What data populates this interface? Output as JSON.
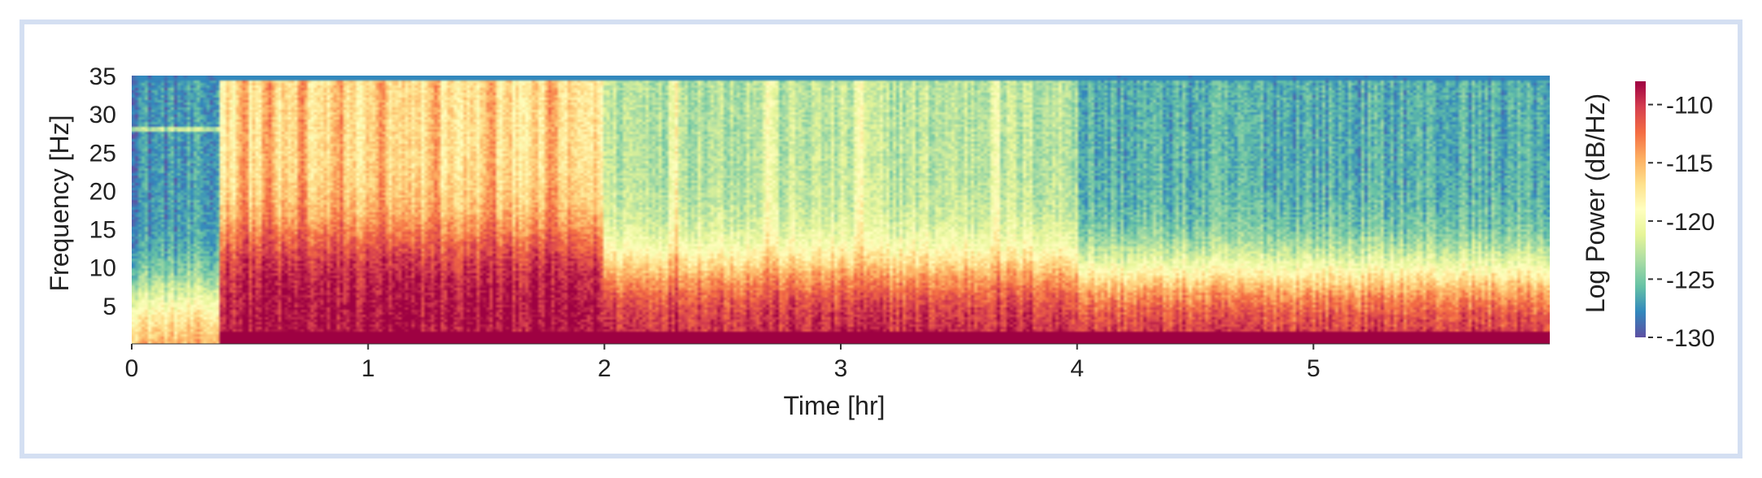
{
  "chart_data": {
    "type": "heatmap",
    "xlabel": "Time [hr]",
    "ylabel": "Frequency [Hz]",
    "colorbar_label": "Log Power (dB/Hz)",
    "xlim": [
      0,
      6.0
    ],
    "ylim": [
      0,
      35
    ],
    "clim": [
      -130,
      -108
    ],
    "xticks": [
      0,
      1,
      2,
      3,
      4,
      5
    ],
    "xtick_labels": [
      "0",
      "1",
      "2",
      "3",
      "4",
      "5"
    ],
    "yticks": [
      5,
      10,
      15,
      20,
      25,
      30,
      35
    ],
    "ytick_labels": [
      "5",
      "10",
      "15",
      "20",
      "25",
      "30",
      "35"
    ],
    "cticks": [
      -110,
      -115,
      -120,
      -125,
      -130
    ],
    "ctick_labels": [
      "-110",
      "-115",
      "-120",
      "-125",
      "-130"
    ],
    "colormap": "Spectral_r",
    "colormap_stops": [
      "#5e4fa2",
      "#3288bd",
      "#66c2a5",
      "#abdda4",
      "#e6f598",
      "#ffffbf",
      "#fee08b",
      "#fdae61",
      "#f46d43",
      "#d53e4f",
      "#9e0142"
    ],
    "segments": [
      {
        "t_start": 0.0,
        "t_end": 0.37,
        "description": "low power above ~10 Hz, narrow line near 28 Hz"
      },
      {
        "t_start": 0.37,
        "t_end": 2.0,
        "description": "high broadband power, vertical bright bands"
      },
      {
        "t_start": 2.0,
        "t_end": 4.0,
        "description": "moderate power with bright vertical bands near 2.3, 2.7, 3.08, 3.65 hr"
      },
      {
        "t_start": 4.0,
        "t_end": 6.0,
        "description": "low power above ~15 Hz, strong power below 5 Hz"
      }
    ]
  }
}
